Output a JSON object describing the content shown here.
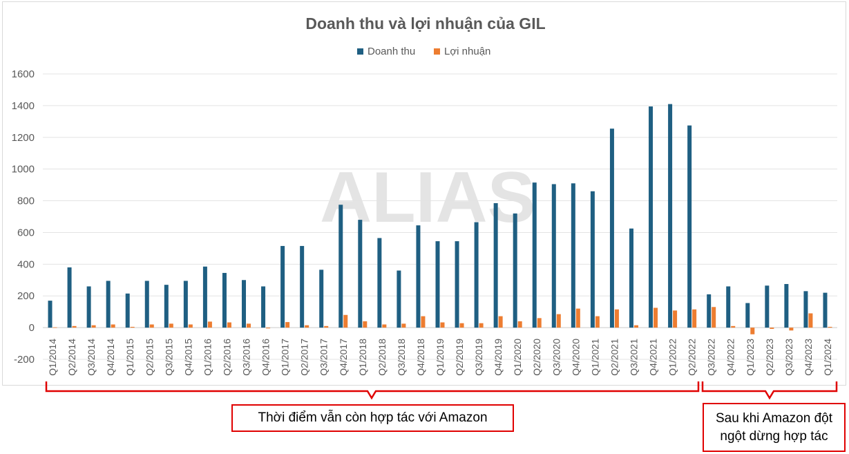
{
  "chart_data": {
    "type": "bar",
    "title": "Doanh thu và lợi nhuận của GIL",
    "watermark": "ALIAS",
    "legend_position": "top",
    "grid": true,
    "ylim": [
      -200,
      1600
    ],
    "yticks": [
      "-200",
      "0",
      "200",
      "400",
      "600",
      "800",
      "1000",
      "1200",
      "1400",
      "1600"
    ],
    "categories": [
      "Q1/2014",
      "Q2/2014",
      "Q3/2014",
      "Q4/2014",
      "Q1/2015",
      "Q2/2015",
      "Q3/2015",
      "Q4/2015",
      "Q1/2016",
      "Q2/2016",
      "Q3/2016",
      "Q4/2016",
      "Q1/2017",
      "Q2/2017",
      "Q3/2017",
      "Q4/2017",
      "Q1/2018",
      "Q2/2018",
      "Q3/2018",
      "Q4/2018",
      "Q1/2019",
      "Q2/2019",
      "Q3/2019",
      "Q4/2019",
      "Q1/2020",
      "Q2/2020",
      "Q3/2020",
      "Q4/2020",
      "Q1/2021",
      "Q2/2021",
      "Q3/2021",
      "Q4/2021",
      "Q1/2022",
      "Q2/2022",
      "Q3/2022",
      "Q4/2022",
      "Q1/2023",
      "Q2/2023",
      "Q3/2023",
      "Q4/2023",
      "Q1/2024"
    ],
    "series": [
      {
        "name": "Doanh thu",
        "color": "#1f5f82",
        "values": [
          170,
          380,
          260,
          295,
          215,
          295,
          270,
          295,
          385,
          345,
          300,
          260,
          515,
          515,
          365,
          775,
          680,
          565,
          360,
          645,
          545,
          545,
          665,
          785,
          720,
          915,
          905,
          910,
          860,
          1255,
          625,
          1395,
          1410,
          1275,
          210,
          260,
          155,
          265,
          275,
          230,
          220
        ]
      },
      {
        "name": "Lợi nhuận",
        "color": "#ed7d31",
        "values": [
          2,
          10,
          15,
          20,
          5,
          20,
          25,
          20,
          38,
          33,
          25,
          -5,
          35,
          15,
          10,
          80,
          40,
          20,
          25,
          72,
          33,
          28,
          28,
          72,
          40,
          60,
          85,
          120,
          72,
          115,
          15,
          125,
          108,
          115,
          130,
          10,
          -42,
          -8,
          -18,
          90,
          5
        ]
      }
    ]
  },
  "annotations": {
    "cooperation": "Thời điểm vẫn còn hợp tác với Amazon",
    "after_line1": "Sau khi Amazon đột",
    "after_line2": "ngột dừng hợp  tác",
    "color": "#e00000"
  }
}
